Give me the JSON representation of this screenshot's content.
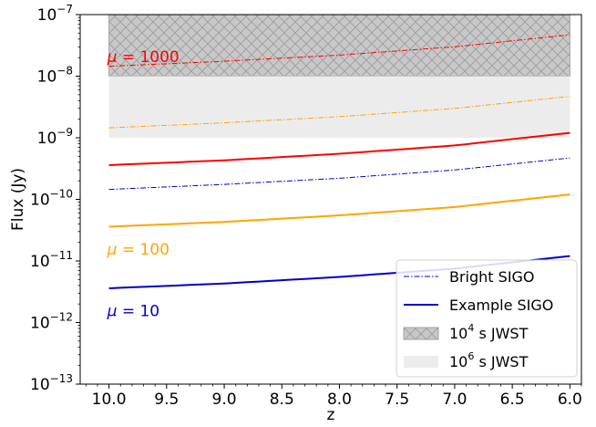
{
  "chart_data": {
    "type": "line",
    "xlabel": "z",
    "ylabel": "Flux (Jy)",
    "x_reversed": true,
    "y_scale": "log",
    "xlim": [
      10.25,
      5.9
    ],
    "ylim": [
      1e-13,
      1e-07
    ],
    "grid": false,
    "legend_position": "bottom-right",
    "x_ticks": [
      {
        "value": 10.0,
        "label": "10.0"
      },
      {
        "value": 9.5,
        "label": "9.5"
      },
      {
        "value": 9.0,
        "label": "9.0"
      },
      {
        "value": 8.5,
        "label": "8.5"
      },
      {
        "value": 8.0,
        "label": "8.0"
      },
      {
        "value": 7.5,
        "label": "7.5"
      },
      {
        "value": 7.0,
        "label": "7.0"
      },
      {
        "value": 6.5,
        "label": "6.5"
      },
      {
        "value": 6.0,
        "label": "6.0"
      }
    ],
    "y_ticks": [
      {
        "value": 1e-13,
        "base": "10",
        "exp": "−13"
      },
      {
        "value": 1e-12,
        "base": "10",
        "exp": "−12"
      },
      {
        "value": 1e-11,
        "base": "10",
        "exp": "−11"
      },
      {
        "value": 1e-10,
        "base": "10",
        "exp": "−10"
      },
      {
        "value": 1e-09,
        "base": "10",
        "exp": "−9"
      },
      {
        "value": 1e-08,
        "base": "10",
        "exp": "−8"
      },
      {
        "value": 1e-07,
        "base": "10",
        "exp": "−7"
      }
    ],
    "bands": [
      {
        "key": "jwst_1e4",
        "y_min": 1e-08,
        "y_max": 1e-07,
        "x_from": 10.0,
        "x_to": 6.0,
        "fill": "#c8c8c8",
        "edge": "#a0a0a0",
        "hatch": "cross"
      },
      {
        "key": "jwst_1e6",
        "y_min": 1e-09,
        "y_max": 1e-08,
        "x_from": 10.0,
        "x_to": 6.0,
        "fill": "#ececec",
        "edge": "none",
        "hatch": "none"
      }
    ],
    "series": [
      {
        "key": "bright_mu1000",
        "style": "dashdot",
        "color": "#ff0000",
        "x": [
          10.0,
          9.0,
          8.0,
          7.0,
          6.0
        ],
        "y": [
          1.45e-08,
          1.75e-08,
          2.2e-08,
          3e-08,
          4.7e-08
        ]
      },
      {
        "key": "bright_mu100",
        "style": "dashdot",
        "color": "#ffa500",
        "x": [
          10.0,
          9.0,
          8.0,
          7.0,
          6.0
        ],
        "y": [
          1.45e-09,
          1.75e-09,
          2.2e-09,
          3e-09,
          4.7e-09
        ]
      },
      {
        "key": "example_mu1000",
        "style": "solid",
        "color": "#ff0000",
        "x": [
          10.0,
          9.0,
          8.0,
          7.0,
          6.0
        ],
        "y": [
          3.6e-10,
          4.3e-10,
          5.5e-10,
          7.5e-10,
          1.2e-09
        ]
      },
      {
        "key": "bright_mu10",
        "style": "dashdot",
        "color": "#0000cc",
        "x": [
          10.0,
          9.0,
          8.0,
          7.0,
          6.0
        ],
        "y": [
          1.45e-10,
          1.75e-10,
          2.2e-10,
          3e-10,
          4.7e-10
        ]
      },
      {
        "key": "example_mu100",
        "style": "solid",
        "color": "#ffa500",
        "x": [
          10.0,
          9.0,
          8.0,
          7.0,
          6.0
        ],
        "y": [
          3.6e-11,
          4.3e-11,
          5.5e-11,
          7.5e-11,
          1.2e-10
        ]
      },
      {
        "key": "example_mu10",
        "style": "solid",
        "color": "#0000cc",
        "x": [
          10.0,
          9.0,
          8.0,
          7.0,
          6.0
        ],
        "y": [
          3.6e-12,
          4.3e-12,
          5.5e-12,
          7.5e-12,
          1.2e-11
        ]
      }
    ],
    "annotations": [
      {
        "key": "mu1000",
        "prefix": "μ",
        "text": " = 1000",
        "color": "#ff0000",
        "x": 10.0,
        "y": 2.1e-08
      },
      {
        "key": "mu100",
        "prefix": "μ",
        "text": " = 100",
        "color": "#ffa500",
        "x": 10.0,
        "y": 1.55e-11
      },
      {
        "key": "mu10",
        "prefix": "μ",
        "text": " = 10",
        "color": "#0000cc",
        "x": 10.0,
        "y": 1.55e-12
      }
    ],
    "legend": [
      {
        "kind": "line",
        "style": "dashdot",
        "color": "#0000cc",
        "label": "Bright SIGO"
      },
      {
        "kind": "line",
        "style": "solid",
        "color": "#0000cc",
        "label": "Example SIGO"
      },
      {
        "kind": "patch",
        "fill": "#c8c8c8",
        "edge": "#a0a0a0",
        "hatch": "cross",
        "label_base": "10",
        "label_exp": "4",
        "label_rest": " s JWST"
      },
      {
        "kind": "patch",
        "fill": "#ececec",
        "edge": "none",
        "hatch": "none",
        "label_base": "10",
        "label_exp": "6",
        "label_rest": " s JWST"
      }
    ]
  }
}
